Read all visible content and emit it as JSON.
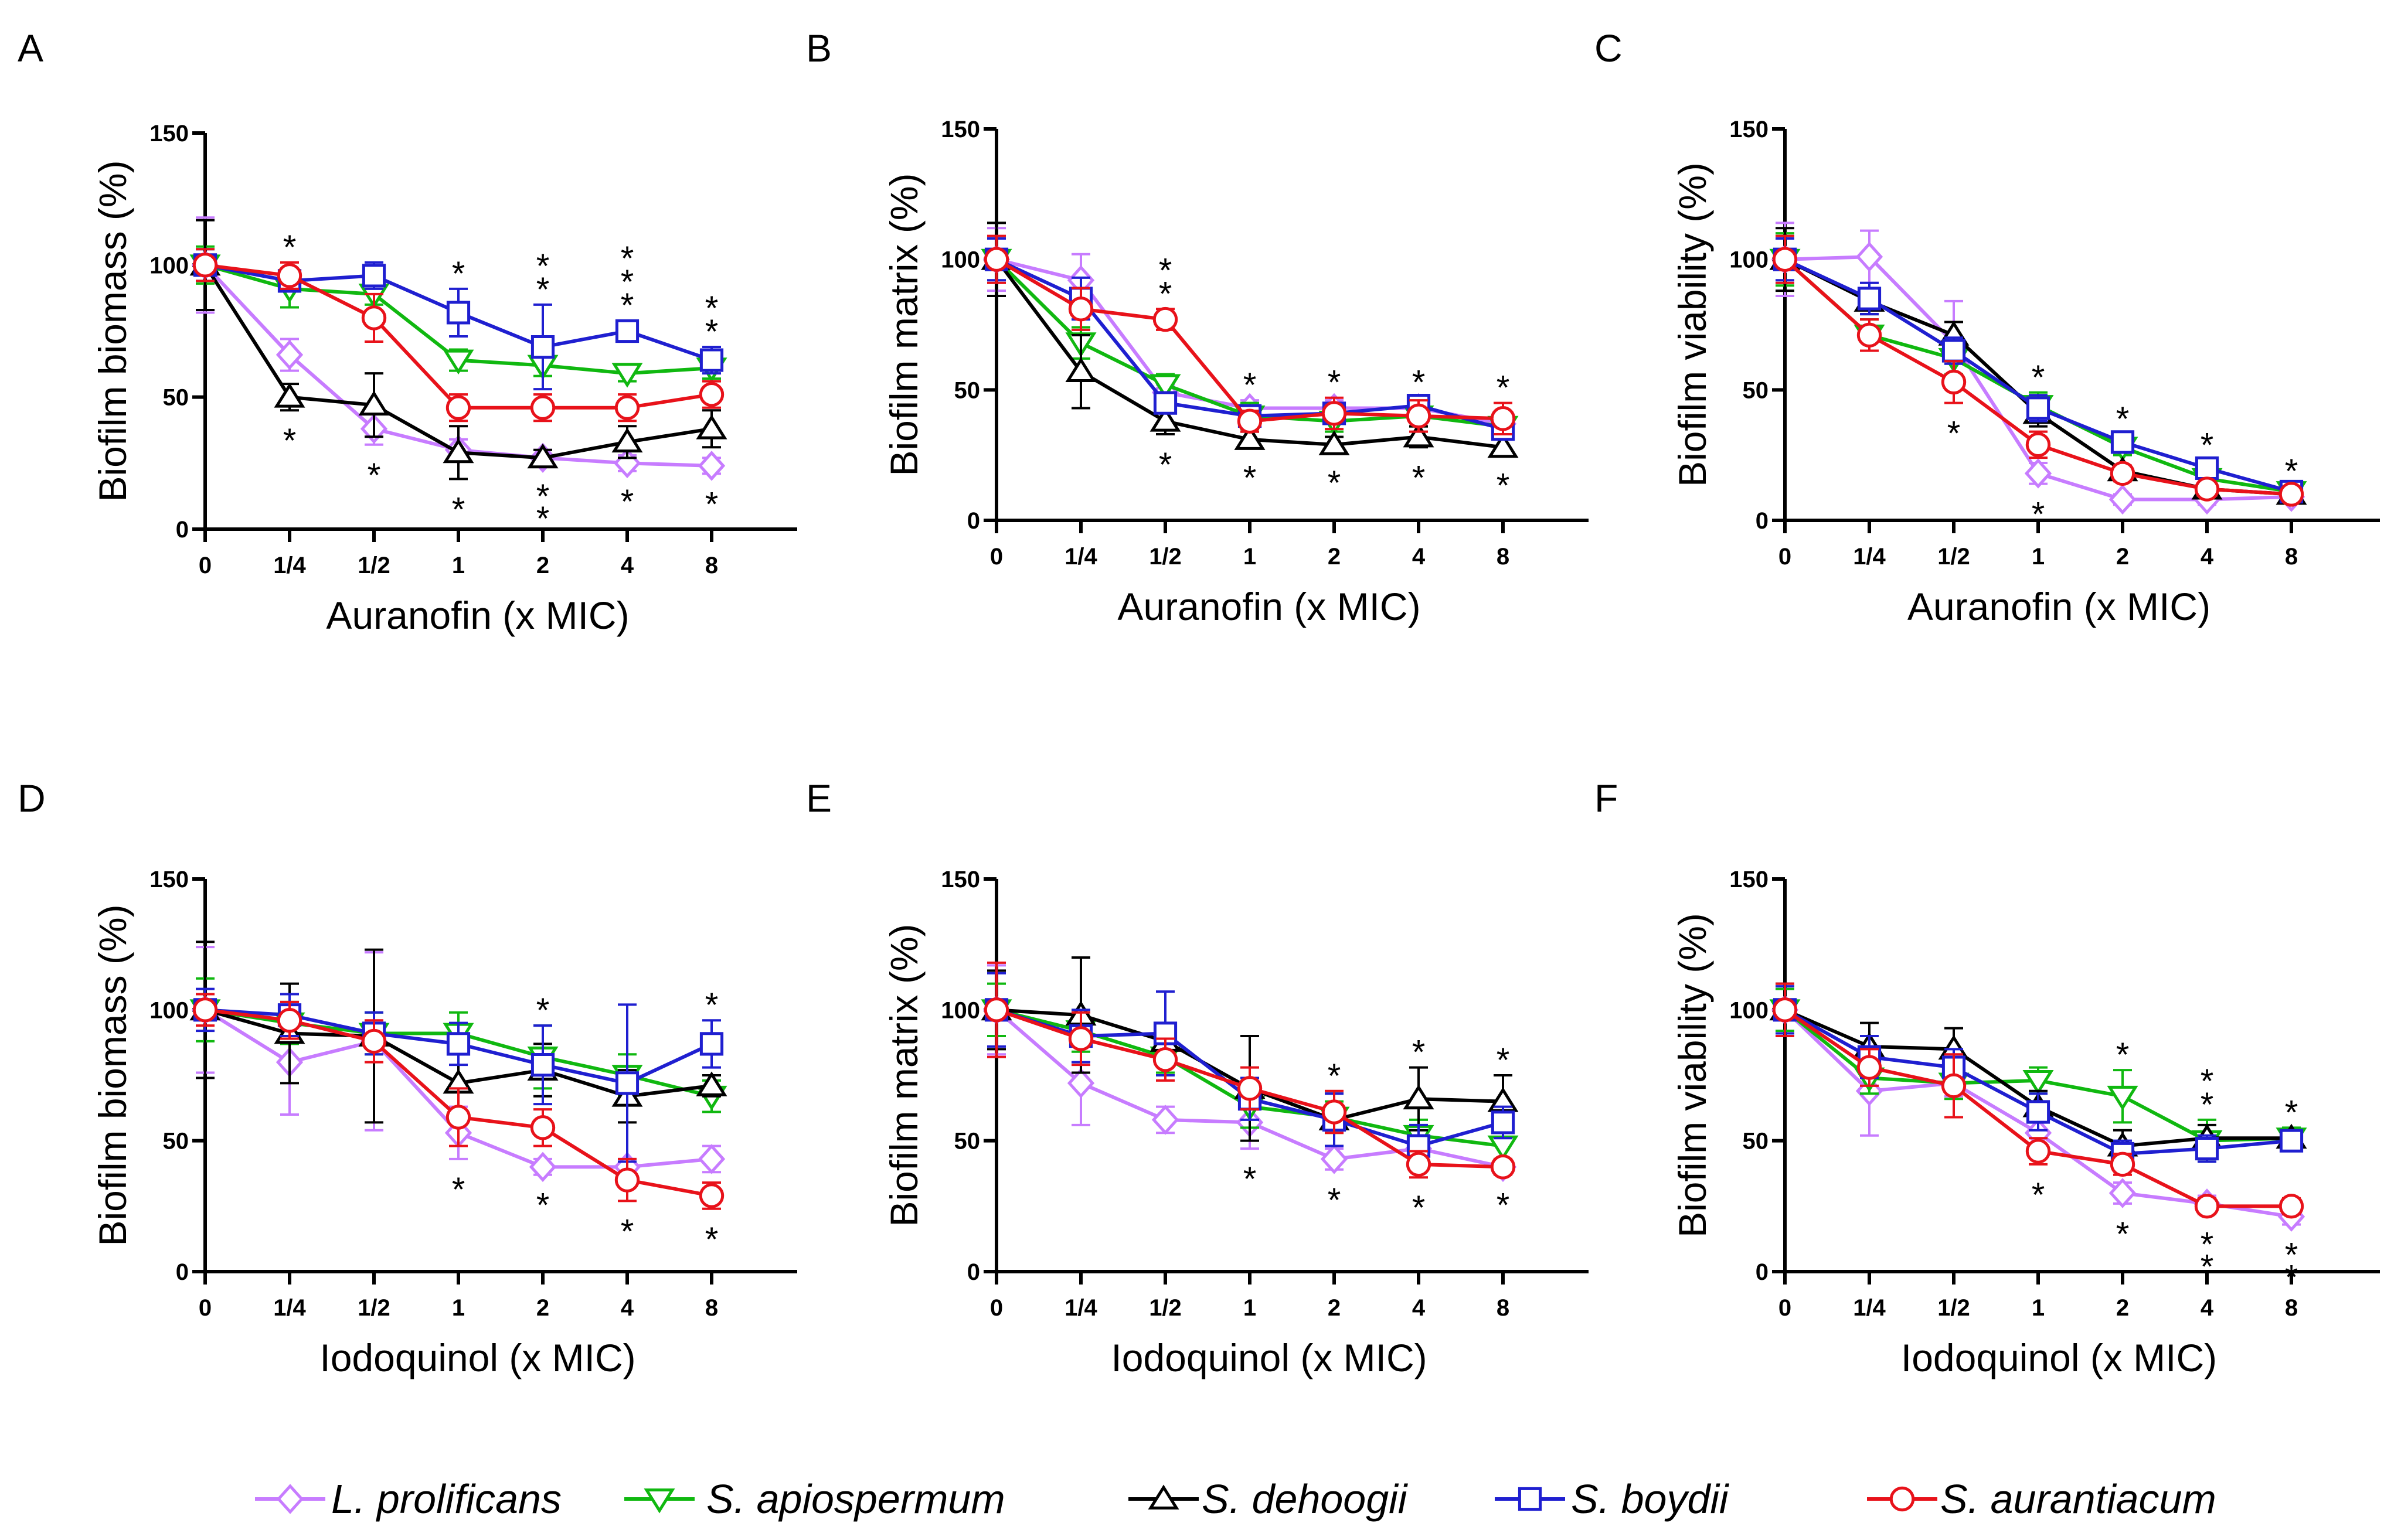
{
  "colors": {
    "L. prolificans": "#c77cff",
    "S. apiospermum": "#10b810",
    "S. dehoogii": "#000000",
    "S. boydii": "#1f1fd0",
    "S. aurantiacum": "#e8121a"
  },
  "markers": {
    "L. prolificans": "diamond",
    "S. apiospermum": "triangle-down",
    "S. dehoogii": "triangle-up",
    "S. boydii": "square",
    "S. aurantiacum": "circle"
  },
  "legend": [
    "L. prolificans",
    "S. apiospermum",
    "S. dehoogii",
    "S. boydii",
    "S. aurantiacum"
  ],
  "chart_data": [
    {
      "panel": "A",
      "type": "line",
      "xlabel": "Auranofin (x MIC)",
      "ylabel": "Biofilm biomass (%)",
      "categories": [
        "0",
        "1/4",
        "1/2",
        "1",
        "2",
        "4",
        "8"
      ],
      "yticks": [
        "0",
        "50",
        "100",
        "150"
      ],
      "ylim": [
        0,
        150
      ],
      "series": [
        {
          "name": "L. prolificans",
          "values": [
            100,
            66,
            38,
            30,
            27,
            25,
            24
          ],
          "errors": [
            18,
            6,
            6,
            4,
            3,
            3,
            3
          ]
        },
        {
          "name": "S. apiospermum",
          "values": [
            100,
            91,
            89,
            64,
            62,
            59,
            61
          ],
          "errors": [
            7,
            7,
            4,
            4,
            4,
            3,
            4
          ]
        },
        {
          "name": "S. dehoogii",
          "values": [
            100,
            50,
            47,
            29,
            27,
            33,
            38
          ],
          "errors": [
            17,
            5,
            12,
            10,
            3,
            6,
            7
          ]
        },
        {
          "name": "S. boydii",
          "values": [
            100,
            94,
            96,
            82,
            69,
            75,
            64
          ],
          "errors": [
            6,
            3,
            5,
            9,
            16,
            4,
            5
          ]
        },
        {
          "name": "S. aurantiacum",
          "values": [
            100,
            96,
            80,
            46,
            46,
            46,
            51
          ],
          "errors": [
            6,
            5,
            9,
            5,
            5,
            5,
            5
          ]
        }
      ],
      "stars": [
        [
          1,
          "above"
        ],
        [
          1,
          "below"
        ],
        [
          2,
          "below"
        ],
        [
          3,
          "above"
        ],
        [
          3,
          "below"
        ],
        [
          4,
          "above"
        ],
        [
          4,
          "above2"
        ],
        [
          4,
          "below"
        ],
        [
          4,
          "below2"
        ],
        [
          5,
          "above"
        ],
        [
          5,
          "above2"
        ],
        [
          5,
          "above3"
        ],
        [
          5,
          "below"
        ],
        [
          6,
          "above"
        ],
        [
          6,
          "above2"
        ],
        [
          6,
          "below"
        ]
      ]
    },
    {
      "panel": "B",
      "type": "line",
      "xlabel": "Auranofin (x MIC)",
      "ylabel": "Biofilm matrix (%)",
      "categories": [
        "0",
        "1/4",
        "1/2",
        "1",
        "2",
        "4",
        "8"
      ],
      "yticks": [
        "0",
        "50",
        "100",
        "150"
      ],
      "ylim": [
        0,
        150
      ],
      "series": [
        {
          "name": "L. prolificans",
          "values": [
            100,
            92,
            49,
            43,
            43,
            43,
            37
          ],
          "errors": [
            12,
            10,
            3,
            3,
            3,
            3,
            3
          ]
        },
        {
          "name": "S. apiospermum",
          "values": [
            100,
            68,
            52,
            40,
            38,
            40,
            36
          ],
          "errors": [
            14,
            6,
            4,
            5,
            4,
            4,
            3
          ]
        },
        {
          "name": "S. dehoogii",
          "values": [
            100,
            57,
            38,
            31,
            29,
            32,
            28
          ],
          "errors": [
            14,
            14,
            5,
            3,
            3,
            4,
            3
          ]
        },
        {
          "name": "S. boydii",
          "values": [
            100,
            85,
            45,
            40,
            41,
            44,
            35
          ],
          "errors": [
            8,
            8,
            4,
            4,
            4,
            3,
            3
          ]
        },
        {
          "name": "S. aurantiacum",
          "values": [
            100,
            81,
            77,
            38,
            41,
            40,
            39
          ],
          "errors": [
            9,
            8,
            4,
            4,
            6,
            6,
            6
          ]
        }
      ],
      "stars": [
        [
          2,
          "above"
        ],
        [
          2,
          "above2"
        ],
        [
          2,
          "below"
        ],
        [
          3,
          "above"
        ],
        [
          3,
          "below"
        ],
        [
          4,
          "above"
        ],
        [
          4,
          "below"
        ],
        [
          5,
          "above"
        ],
        [
          5,
          "below"
        ],
        [
          6,
          "above"
        ],
        [
          6,
          "below"
        ]
      ]
    },
    {
      "panel": "C",
      "type": "line",
      "xlabel": "Auranofin (x MIC)",
      "ylabel": "Biofilm viability (%)",
      "categories": [
        "0",
        "1/4",
        "1/2",
        "1",
        "2",
        "4",
        "8"
      ],
      "yticks": [
        "0",
        "50",
        "100",
        "150"
      ],
      "ylim": [
        0,
        150
      ],
      "series": [
        {
          "name": "L. prolificans",
          "values": [
            100,
            101,
            68,
            18,
            8,
            8,
            9
          ],
          "errors": [
            14,
            10,
            16,
            4,
            2,
            2,
            2
          ]
        },
        {
          "name": "S. apiospermum",
          "values": [
            100,
            71,
            62,
            44,
            28,
            16,
            11
          ],
          "errors": [
            10,
            6,
            6,
            5,
            3,
            3,
            2
          ]
        },
        {
          "name": "S. dehoogii",
          "values": [
            100,
            84,
            71,
            41,
            19,
            12,
            10
          ],
          "errors": [
            12,
            5,
            5,
            5,
            2,
            2,
            2
          ]
        },
        {
          "name": "S. boydii",
          "values": [
            100,
            85,
            65,
            43,
            30,
            20,
            11
          ],
          "errors": [
            8,
            6,
            5,
            5,
            3,
            3,
            2
          ]
        },
        {
          "name": "S. aurantiacum",
          "values": [
            100,
            71,
            53,
            29,
            18,
            12,
            10
          ],
          "errors": [
            9,
            6,
            8,
            5,
            3,
            2,
            2
          ]
        }
      ],
      "stars": [
        [
          2,
          "below"
        ],
        [
          3,
          "above"
        ],
        [
          3,
          "below"
        ],
        [
          4,
          "above"
        ],
        [
          5,
          "above"
        ],
        [
          6,
          "above"
        ]
      ]
    },
    {
      "panel": "D",
      "type": "line",
      "xlabel": "Iodoquinol (x MIC)",
      "ylabel": "Biofilm biomass (%)",
      "categories": [
        "0",
        "1/4",
        "1/2",
        "1",
        "2",
        "4",
        "8"
      ],
      "yticks": [
        "0",
        "50",
        "100",
        "150"
      ],
      "ylim": [
        0,
        150
      ],
      "series": [
        {
          "name": "L. prolificans",
          "values": [
            100,
            80,
            88,
            53,
            40,
            40,
            43
          ],
          "errors": [
            24,
            20,
            34,
            10,
            3,
            3,
            5
          ]
        },
        {
          "name": "S. apiospermum",
          "values": [
            100,
            95,
            91,
            91,
            82,
            75,
            67
          ],
          "errors": [
            12,
            8,
            8,
            8,
            12,
            8,
            6
          ]
        },
        {
          "name": "S. dehoogii",
          "values": [
            100,
            91,
            90,
            72,
            77,
            67,
            71
          ],
          "errors": [
            26,
            19,
            33,
            12,
            10,
            10,
            4
          ]
        },
        {
          "name": "S. boydii",
          "values": [
            100,
            98,
            91,
            87,
            79,
            72,
            87
          ],
          "errors": [
            8,
            8,
            8,
            8,
            15,
            30,
            9
          ]
        },
        {
          "name": "S. aurantiacum",
          "values": [
            100,
            96,
            88,
            59,
            55,
            35,
            29
          ],
          "errors": [
            6,
            7,
            8,
            11,
            7,
            8,
            5
          ]
        }
      ],
      "stars": [
        [
          3,
          "below"
        ],
        [
          4,
          "above"
        ],
        [
          4,
          "below"
        ],
        [
          5,
          "below"
        ],
        [
          6,
          "above"
        ],
        [
          6,
          "below"
        ]
      ]
    },
    {
      "panel": "E",
      "type": "line",
      "xlabel": "Iodoquinol (x MIC)",
      "ylabel": "Biofilm matrix (%)",
      "categories": [
        "0",
        "1/4",
        "1/2",
        "1",
        "2",
        "4",
        "8"
      ],
      "yticks": [
        "0",
        "50",
        "100",
        "150"
      ],
      "ylim": [
        0,
        150
      ],
      "series": [
        {
          "name": "L. prolificans",
          "values": [
            100,
            72,
            58,
            57,
            43,
            47,
            40
          ],
          "errors": [
            17,
            16,
            5,
            10,
            4,
            4,
            2
          ]
        },
        {
          "name": "S. apiospermum",
          "values": [
            100,
            92,
            82,
            63,
            59,
            52,
            48
          ],
          "errors": [
            10,
            8,
            6,
            8,
            6,
            6,
            5
          ]
        },
        {
          "name": "S. dehoogii",
          "values": [
            100,
            98,
            88,
            70,
            58,
            66,
            65
          ],
          "errors": [
            15,
            22,
            6,
            20,
            10,
            12,
            10
          ]
        },
        {
          "name": "S. boydii",
          "values": [
            100,
            90,
            91,
            66,
            58,
            48,
            57
          ],
          "errors": [
            14,
            10,
            16,
            8,
            10,
            8,
            6
          ]
        },
        {
          "name": "S. aurantiacum",
          "values": [
            100,
            89,
            81,
            70,
            61,
            41,
            40
          ],
          "errors": [
            18,
            10,
            8,
            8,
            8,
            5,
            3
          ]
        }
      ],
      "stars": [
        [
          3,
          "below"
        ],
        [
          4,
          "above"
        ],
        [
          4,
          "below"
        ],
        [
          5,
          "above"
        ],
        [
          5,
          "below"
        ],
        [
          6,
          "above"
        ],
        [
          6,
          "below"
        ]
      ]
    },
    {
      "panel": "F",
      "type": "line",
      "xlabel": "Iodoquinol (x MIC)",
      "ylabel": "Biofilm viability (%)",
      "categories": [
        "0",
        "1/4",
        "1/2",
        "1",
        "2",
        "4",
        "8"
      ],
      "yticks": [
        "0",
        "50",
        "100",
        "150"
      ],
      "ylim": [
        0,
        150
      ],
      "series": [
        {
          "name": "L. prolificans",
          "values": [
            100,
            69,
            72,
            53,
            30,
            26,
            21
          ],
          "errors": [
            10,
            17,
            5,
            6,
            4,
            3,
            3
          ]
        },
        {
          "name": "S. apiospermum",
          "values": [
            100,
            74,
            72,
            73,
            67,
            50,
            51
          ],
          "errors": [
            8,
            6,
            6,
            5,
            10,
            8,
            4
          ]
        },
        {
          "name": "S. dehoogii",
          "values": [
            100,
            86,
            85,
            63,
            48,
            51,
            51
          ],
          "errors": [
            10,
            9,
            8,
            6,
            6,
            5,
            3
          ]
        },
        {
          "name": "S. boydii",
          "values": [
            100,
            82,
            78,
            61,
            45,
            47,
            50
          ],
          "errors": [
            9,
            8,
            7,
            7,
            5,
            5,
            3
          ]
        },
        {
          "name": "S. aurantiacum",
          "values": [
            100,
            78,
            71,
            46,
            41,
            25,
            25
          ],
          "errors": [
            10,
            7,
            12,
            5,
            4,
            3,
            3
          ]
        }
      ],
      "stars": [
        [
          3,
          "below"
        ],
        [
          4,
          "above"
        ],
        [
          4,
          "below"
        ],
        [
          5,
          "above"
        ],
        [
          5,
          "above2"
        ],
        [
          5,
          "below"
        ],
        [
          5,
          "below2"
        ],
        [
          6,
          "above"
        ],
        [
          6,
          "below"
        ],
        [
          6,
          "below2"
        ]
      ]
    }
  ]
}
